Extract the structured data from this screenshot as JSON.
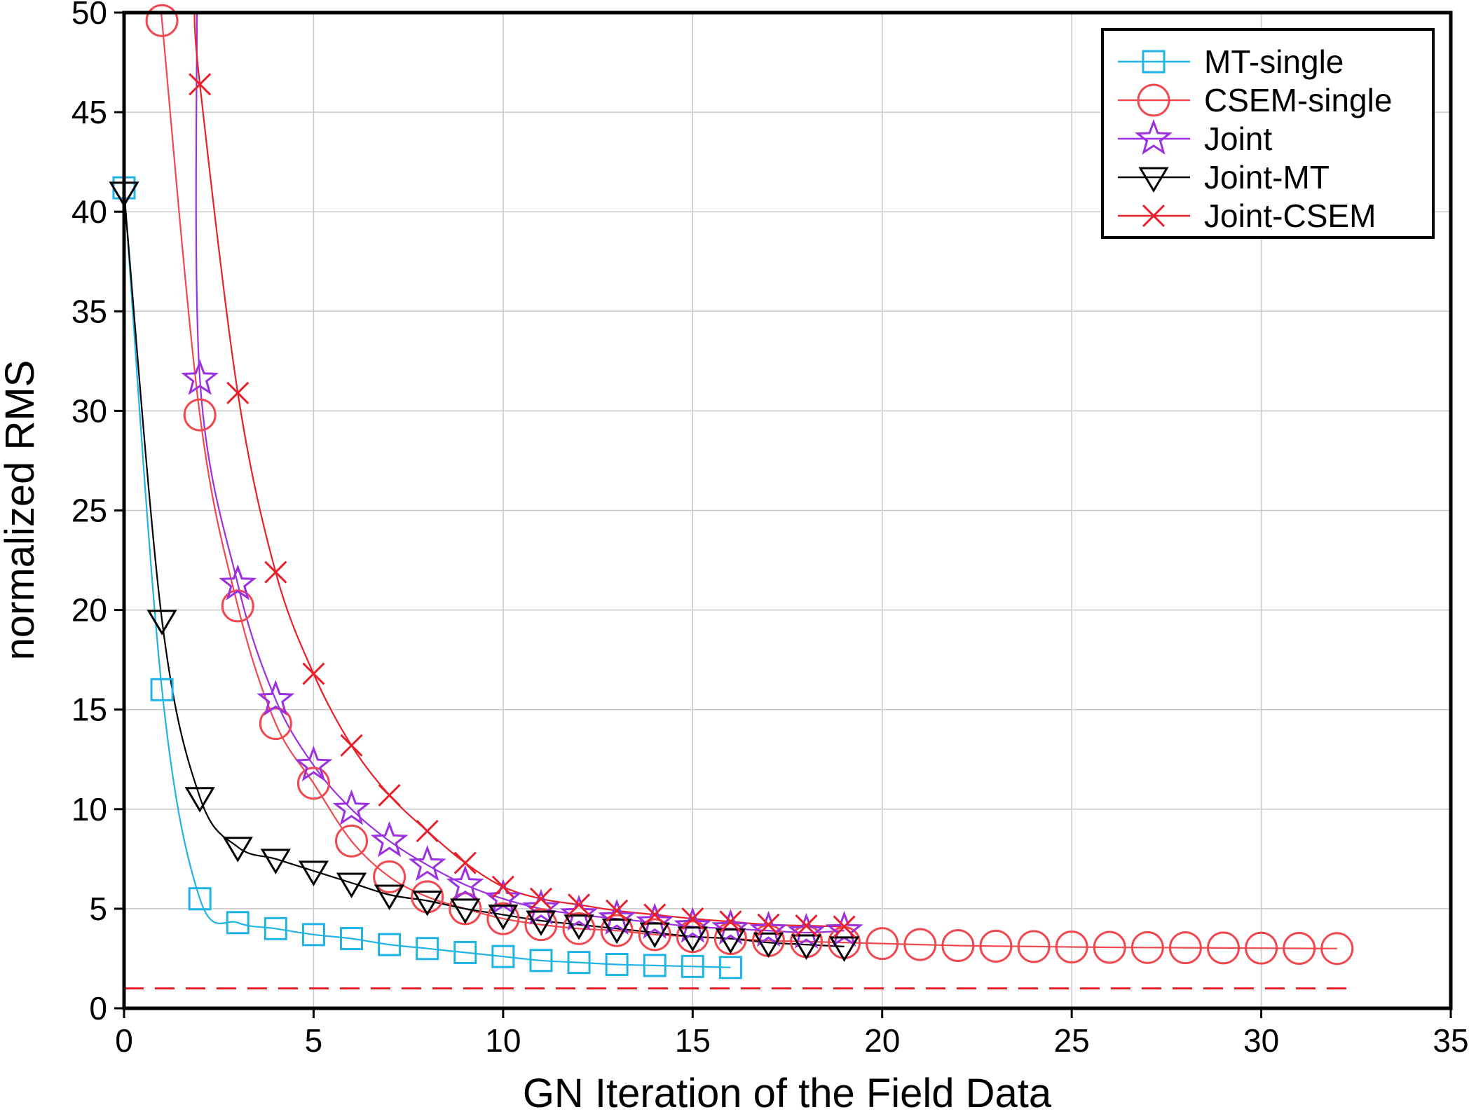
{
  "chart_data": {
    "type": "line",
    "title": "",
    "xlabel": "GN Iteration of the Field Data",
    "ylabel": "normalized RMS",
    "xlim": [
      0,
      35
    ],
    "ylim": [
      0,
      50
    ],
    "xticks": [
      0,
      5,
      10,
      15,
      20,
      25,
      30,
      35
    ],
    "yticks": [
      0,
      5,
      10,
      15,
      20,
      25,
      30,
      35,
      40,
      45,
      50
    ],
    "grid": true,
    "legend_position": "top-right",
    "reference_line": {
      "y": 1,
      "style": "dashed",
      "color": "#e8202a"
    },
    "series": [
      {
        "name": "MT-single",
        "color": "#1fb3e6",
        "marker": "square",
        "x": [
          0,
          1,
          2,
          3,
          4,
          5,
          6,
          7,
          8,
          9,
          10,
          11,
          12,
          13,
          14,
          15,
          16
        ],
        "y": [
          41.2,
          16.0,
          5.5,
          4.3,
          4.0,
          3.7,
          3.5,
          3.2,
          3.0,
          2.8,
          2.6,
          2.4,
          2.3,
          2.2,
          2.15,
          2.1,
          2.05
        ]
      },
      {
        "name": "CSEM-single",
        "color": "#f0484e",
        "marker": "circle",
        "x": [
          1,
          2,
          3,
          4,
          5,
          6,
          7,
          8,
          9,
          10,
          11,
          12,
          13,
          14,
          15,
          16,
          17,
          18,
          19,
          20,
          21,
          22,
          23,
          24,
          25,
          26,
          27,
          28,
          29,
          30,
          31,
          32
        ],
        "y": [
          49.6,
          29.8,
          20.2,
          14.3,
          11.3,
          8.4,
          6.6,
          5.6,
          5.0,
          4.5,
          4.2,
          4.0,
          3.9,
          3.7,
          3.6,
          3.5,
          3.4,
          3.35,
          3.3,
          3.25,
          3.2,
          3.15,
          3.12,
          3.1,
          3.08,
          3.06,
          3.05,
          3.04,
          3.03,
          3.02,
          3.01,
          3.0
        ]
      },
      {
        "name": "Joint",
        "color": "#9b30e0",
        "marker": "star",
        "x": [
          2,
          3,
          4,
          5,
          6,
          7,
          8,
          9,
          10,
          11,
          12,
          13,
          14,
          15,
          16,
          17,
          18,
          19
        ],
        "y": [
          31.6,
          21.3,
          15.5,
          12.2,
          10.0,
          8.4,
          7.2,
          6.2,
          5.5,
          5.0,
          4.7,
          4.5,
          4.3,
          4.1,
          4.0,
          3.9,
          3.8,
          3.9
        ]
      },
      {
        "name": "Joint-MT",
        "color": "#000000",
        "marker": "triangle-down",
        "x": [
          0,
          1,
          2,
          3,
          4,
          5,
          6,
          7,
          8,
          9,
          10,
          11,
          12,
          13,
          14,
          15,
          16,
          17,
          18,
          19
        ],
        "y": [
          41.0,
          19.5,
          10.6,
          8.1,
          7.5,
          6.9,
          6.3,
          5.7,
          5.4,
          5.0,
          4.7,
          4.4,
          4.2,
          4.0,
          3.8,
          3.6,
          3.5,
          3.3,
          3.2,
          3.1
        ]
      },
      {
        "name": "Joint-CSEM",
        "color": "#e8202a",
        "marker": "x",
        "x": [
          2,
          3,
          4,
          5,
          6,
          7,
          8,
          9,
          10,
          11,
          12,
          13,
          14,
          15,
          16,
          17,
          18,
          19
        ],
        "y": [
          46.4,
          30.9,
          21.9,
          16.8,
          13.2,
          10.7,
          8.9,
          7.3,
          6.1,
          5.5,
          5.2,
          4.9,
          4.7,
          4.5,
          4.35,
          4.2,
          4.15,
          4.1
        ],
        "line_start_above_range": true
      }
    ]
  }
}
